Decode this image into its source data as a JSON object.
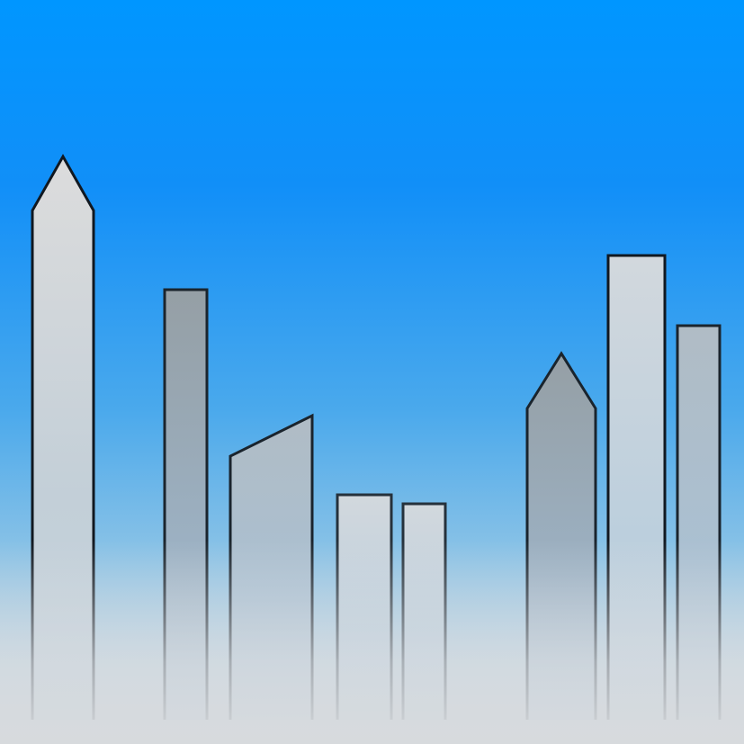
{
  "scene": {
    "description_name": "city-skyline-illustration",
    "colors": {
      "sky_top": "#0096ff",
      "sky_mid": "#3fa6ee",
      "sky_low": "#86c2e8",
      "horizon_fog": "#d6dbe0",
      "outline": "#111820",
      "building_light": "#d9dcde",
      "building_blue_light": "#c9d5de",
      "building_dark": "#9aa4ab"
    },
    "buildings": [
      {
        "name": "spire-tower-left",
        "shape": "spire",
        "tone": "light"
      },
      {
        "name": "tall-dark-tower",
        "shape": "rect",
        "tone": "dark"
      },
      {
        "name": "slanted-roof-tower",
        "shape": "slant",
        "tone": "mid"
      },
      {
        "name": "short-tower-a",
        "shape": "rect",
        "tone": "blue-light"
      },
      {
        "name": "short-tower-b",
        "shape": "rect",
        "tone": "blue-light"
      },
      {
        "name": "spire-tower-right",
        "shape": "spire",
        "tone": "dark"
      },
      {
        "name": "tallest-right-tower",
        "shape": "rect",
        "tone": "blue-light"
      },
      {
        "name": "right-edge-tower",
        "shape": "rect",
        "tone": "mid"
      }
    ]
  }
}
